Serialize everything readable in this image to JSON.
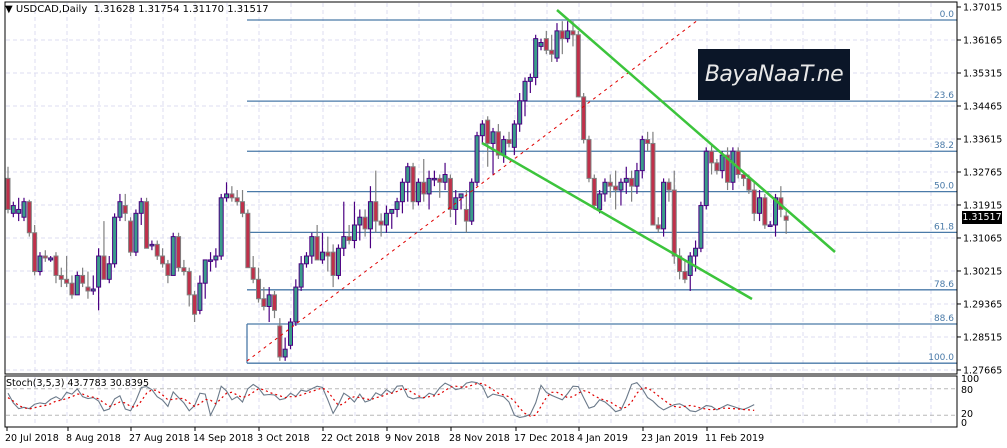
{
  "header": {
    "symbol": "USDCAD,Daily",
    "ohlc": "1.31628 1.31754 1.31170 1.31517",
    "arrow_icon": "triangle-down-icon"
  },
  "logo": {
    "text": "BayaNaaT.ne"
  },
  "current_price": "1.31517",
  "indicator": {
    "label": "Stoch(3,5,3) 43.7783 30.8395",
    "levels": [
      "100",
      "80",
      "20",
      "0"
    ]
  },
  "colors": {
    "bull_body": "#3a9c8a",
    "bull_border": "#4b0082",
    "bear_body": "#c0304a",
    "bear_border": "#808080",
    "fib_line": "#4a7aa8",
    "channel": "#3cc43c",
    "trend_dashed": "#e00000",
    "stoch_main": "#6b7a8a",
    "stoch_signal": "#e00000",
    "grid": "#dcdcf0"
  },
  "chart_data": {
    "type": "candlestick",
    "title": "USDCAD, Daily",
    "xlabel": "",
    "ylabel": "",
    "y_axis_ticks": [
      "1.37015",
      "1.36165",
      "1.35315",
      "1.34465",
      "1.33615",
      "1.32765",
      "1.31915",
      "1.31065",
      "1.30215",
      "1.29365",
      "1.28515",
      "1.27665"
    ],
    "x_axis_ticks": [
      "20 Jul 2018",
      "8 Aug 2018",
      "27 Aug 2018",
      "14 Sep 2018",
      "3 Oct 2018",
      "22 Oct 2018",
      "9 Nov 2018",
      "28 Nov 2018",
      "17 Dec 2018",
      "4 Jan 2019",
      "23 Jan 2019",
      "11 Feb 2019"
    ],
    "ylim": [
      1.2745,
      1.372
    ],
    "fibonacci": [
      {
        "level": "0.0",
        "price": 1.3668
      },
      {
        "level": "23.6",
        "price": 1.3459
      },
      {
        "level": "38.2",
        "price": 1.333
      },
      {
        "level": "50.0",
        "price": 1.3226
      },
      {
        "level": "61.8",
        "price": 1.3121
      },
      {
        "level": "78.6",
        "price": 1.2973
      },
      {
        "level": "88.6",
        "price": 1.2885
      },
      {
        "level": "100.0",
        "price": 1.2784
      }
    ],
    "channel_upper": {
      "from": [
        557,
        10
      ],
      "to": [
        835,
        252
      ]
    },
    "channel_lower": {
      "from": [
        482,
        143
      ],
      "to": [
        752,
        299
      ]
    },
    "trend_dashed": {
      "from": [
        247,
        361
      ],
      "to": [
        698,
        20
      ]
    },
    "candles_start_x": 8,
    "candle_spacing": 5.33,
    "ohlc": [
      [
        1.326,
        1.329,
        1.317,
        1.318
      ],
      [
        1.317,
        1.32,
        1.316,
        1.319
      ],
      [
        1.317,
        1.321,
        1.315,
        1.318
      ],
      [
        1.316,
        1.321,
        1.315,
        1.32
      ],
      [
        1.32,
        1.3205,
        1.311,
        1.312
      ],
      [
        1.312,
        1.314,
        1.301,
        1.302
      ],
      [
        1.302,
        1.307,
        1.301,
        1.306
      ],
      [
        1.306,
        1.3075,
        1.3045,
        1.3055
      ],
      [
        1.305,
        1.306,
        1.3045,
        1.3055
      ],
      [
        1.306,
        1.307,
        1.299,
        1.301
      ],
      [
        1.301,
        1.303,
        1.298,
        1.3
      ],
      [
        1.3,
        1.306,
        1.298,
        1.299
      ],
      [
        1.299,
        1.301,
        1.295,
        1.296
      ],
      [
        1.296,
        1.302,
        1.296,
        1.301
      ],
      [
        1.301,
        1.303,
        1.298,
        1.299
      ],
      [
        1.298,
        1.302,
        1.295,
        1.297
      ],
      [
        1.297,
        1.301,
        1.296,
        1.2975
      ],
      [
        1.298,
        1.308,
        1.292,
        1.306
      ],
      [
        1.306,
        1.315,
        1.302,
        1.3
      ],
      [
        1.3,
        1.306,
        1.299,
        1.304
      ],
      [
        1.304,
        1.317,
        1.303,
        1.316
      ],
      [
        1.316,
        1.322,
        1.315,
        1.32
      ],
      [
        1.319,
        1.322,
        1.315,
        1.317
      ],
      [
        1.315,
        1.316,
        1.306,
        1.307
      ],
      [
        1.307,
        1.318,
        1.306,
        1.317
      ],
      [
        1.317,
        1.321,
        1.314,
        1.32
      ],
      [
        1.32,
        1.321,
        1.312,
        1.308
      ],
      [
        1.309,
        1.31,
        1.3075,
        1.309
      ],
      [
        1.309,
        1.31,
        1.305,
        1.306
      ],
      [
        1.306,
        1.308,
        1.303,
        1.304
      ],
      [
        1.304,
        1.305,
        1.299,
        1.301
      ],
      [
        1.301,
        1.312,
        1.301,
        1.311
      ],
      [
        1.311,
        1.312,
        1.302,
        1.303
      ],
      [
        1.303,
        1.305,
        1.301,
        1.302
      ],
      [
        1.302,
        1.303,
        1.293,
        1.296
      ],
      [
        1.296,
        1.297,
        1.289,
        1.291
      ],
      [
        1.292,
        1.301,
        1.291,
        1.299
      ],
      [
        1.299,
        1.304,
        1.295,
        1.305
      ],
      [
        1.305,
        1.307,
        1.302,
        1.305
      ],
      [
        1.305,
        1.308,
        1.303,
        1.306
      ],
      [
        1.306,
        1.322,
        1.305,
        1.321
      ],
      [
        1.321,
        1.325,
        1.32,
        1.322
      ],
      [
        1.322,
        1.324,
        1.32,
        1.321
      ],
      [
        1.321,
        1.323,
        1.319,
        1.32
      ],
      [
        1.32,
        1.323,
        1.316,
        1.317
      ],
      [
        1.317,
        1.318,
        1.305,
        1.303
      ],
      [
        1.303,
        1.306,
        1.299,
        1.3
      ],
      [
        1.3,
        1.303,
        1.294,
        1.295
      ],
      [
        1.295,
        1.298,
        1.292,
        1.293
      ],
      [
        1.293,
        1.298,
        1.289,
        1.296
      ],
      [
        1.296,
        1.297,
        1.29,
        1.292
      ],
      [
        1.288,
        1.29,
        1.279,
        1.28
      ],
      [
        1.28,
        1.285,
        1.279,
        1.282
      ],
      [
        1.283,
        1.29,
        1.282,
        1.289
      ],
      [
        1.289,
        1.3,
        1.288,
        1.298
      ],
      [
        1.298,
        1.306,
        1.297,
        1.304
      ],
      [
        1.304,
        1.307,
        1.303,
        1.306
      ],
      [
        1.306,
        1.312,
        1.304,
        1.311
      ],
      [
        1.311,
        1.314,
        1.305,
        1.305
      ],
      [
        1.305,
        1.312,
        1.304,
        1.307
      ],
      [
        1.307,
        1.311,
        1.302,
        1.306
      ],
      [
        1.307,
        1.309,
        1.298,
        1.301
      ],
      [
        1.301,
        1.309,
        1.3,
        1.308
      ],
      [
        1.308,
        1.32,
        1.306,
        1.311
      ],
      [
        1.311,
        1.314,
        1.309,
        1.31
      ],
      [
        1.31,
        1.32,
        1.308,
        1.314
      ],
      [
        1.314,
        1.318,
        1.31,
        1.316
      ],
      [
        1.316,
        1.318,
        1.311,
        1.313
      ],
      [
        1.313,
        1.324,
        1.308,
        1.32
      ],
      [
        1.32,
        1.328,
        1.312,
        1.315
      ],
      [
        1.315,
        1.317,
        1.311,
        1.314
      ],
      [
        1.314,
        1.319,
        1.312,
        1.317
      ],
      [
        1.317,
        1.318,
        1.313,
        1.318
      ],
      [
        1.318,
        1.321,
        1.316,
        1.32
      ],
      [
        1.32,
        1.326,
        1.317,
        1.325
      ],
      [
        1.325,
        1.33,
        1.32,
        1.329
      ],
      [
        1.329,
        1.33,
        1.318,
        1.32
      ],
      [
        1.32,
        1.326,
        1.319,
        1.325
      ],
      [
        1.325,
        1.331,
        1.32,
        1.322
      ],
      [
        1.322,
        1.328,
        1.318,
        1.326
      ],
      [
        1.326,
        1.328,
        1.324,
        1.326
      ],
      [
        1.326,
        1.327,
        1.321,
        1.325
      ],
      [
        1.325,
        1.33,
        1.323,
        1.327
      ],
      [
        1.326,
        1.327,
        1.316,
        1.318
      ],
      [
        1.318,
        1.323,
        1.314,
        1.321
      ],
      [
        1.321,
        1.322,
        1.318,
        1.322
      ],
      [
        1.318,
        1.323,
        1.312,
        1.315
      ],
      [
        1.315,
        1.326,
        1.314,
        1.325
      ],
      [
        1.325,
        1.338,
        1.324,
        1.337
      ],
      [
        1.337,
        1.341,
        1.335,
        1.34
      ],
      [
        1.341,
        1.342,
        1.329,
        1.335
      ],
      [
        1.335,
        1.339,
        1.327,
        1.338
      ],
      [
        1.338,
        1.34,
        1.331,
        1.332
      ],
      [
        1.332,
        1.337,
        1.33,
        1.336
      ],
      [
        1.336,
        1.338,
        1.334,
        1.335
      ],
      [
        1.334,
        1.341,
        1.332,
        1.34
      ],
      [
        1.34,
        1.348,
        1.338,
        1.346
      ],
      [
        1.346,
        1.352,
        1.342,
        1.351
      ],
      [
        1.351,
        1.353,
        1.348,
        1.352
      ],
      [
        1.352,
        1.363,
        1.35,
        1.362
      ],
      [
        1.36,
        1.362,
        1.359,
        1.361
      ],
      [
        1.362,
        1.364,
        1.358,
        1.359
      ],
      [
        1.359,
        1.363,
        1.356,
        1.358
      ],
      [
        1.357,
        1.366,
        1.356,
        1.364
      ],
      [
        1.364,
        1.3665,
        1.358,
        1.362
      ],
      [
        1.362,
        1.3665,
        1.361,
        1.364
      ],
      [
        1.364,
        1.3665,
        1.36,
        1.363
      ],
      [
        1.363,
        1.364,
        1.352,
        1.347
      ],
      [
        1.347,
        1.348,
        1.335,
        1.336
      ],
      [
        1.336,
        1.337,
        1.325,
        1.326
      ],
      [
        1.326,
        1.327,
        1.318,
        1.319
      ],
      [
        1.318,
        1.323,
        1.317,
        1.322
      ],
      [
        1.322,
        1.326,
        1.32,
        1.325
      ],
      [
        1.325,
        1.327,
        1.321,
        1.324
      ],
      [
        1.324,
        1.328,
        1.318,
        1.323
      ],
      [
        1.323,
        1.326,
        1.319,
        1.325
      ],
      [
        1.325,
        1.329,
        1.322,
        1.326
      ],
      [
        1.326,
        1.328,
        1.32,
        1.324
      ],
      [
        1.324,
        1.33,
        1.322,
        1.328
      ],
      [
        1.328,
        1.337,
        1.326,
        1.336
      ],
      [
        1.336,
        1.338,
        1.333,
        1.335
      ],
      [
        1.335,
        1.338,
        1.32,
        1.314
      ],
      [
        1.314,
        1.316,
        1.312,
        1.313
      ],
      [
        1.313,
        1.326,
        1.311,
        1.325
      ],
      [
        1.325,
        1.326,
        1.32,
        1.323
      ],
      [
        1.323,
        1.328,
        1.304,
        1.306
      ],
      [
        1.306,
        1.308,
        1.3,
        1.302
      ],
      [
        1.302,
        1.305,
        1.299,
        1.3
      ],
      [
        1.301,
        1.307,
        1.297,
        1.306
      ],
      [
        1.306,
        1.31,
        1.302,
        1.308
      ],
      [
        1.308,
        1.32,
        1.307,
        1.319
      ],
      [
        1.319,
        1.334,
        1.318,
        1.333
      ],
      [
        1.333,
        1.335,
        1.327,
        1.33
      ],
      [
        1.33,
        1.331,
        1.327,
        1.328
      ],
      [
        1.328,
        1.333,
        1.326,
        1.332
      ],
      [
        1.332,
        1.334,
        1.323,
        1.325
      ],
      [
        1.325,
        1.334,
        1.323,
        1.333
      ],
      [
        1.333,
        1.334,
        1.326,
        1.327
      ],
      [
        1.327,
        1.328,
        1.324,
        1.326
      ],
      [
        1.326,
        1.327,
        1.322,
        1.323
      ],
      [
        1.323,
        1.325,
        1.315,
        1.317
      ],
      [
        1.317,
        1.323,
        1.315,
        1.321
      ],
      [
        1.321,
        1.322,
        1.313,
        1.314
      ],
      [
        1.314,
        1.315,
        1.314,
        1.314
      ],
      [
        1.314,
        1.322,
        1.311,
        1.321
      ],
      [
        1.321,
        1.324,
        1.316,
        1.318
      ],
      [
        1.3163,
        1.3175,
        1.3117,
        1.3152
      ]
    ],
    "stoch_main": [
      70,
      48,
      35,
      38,
      35,
      45,
      48,
      46,
      56,
      62,
      55,
      72,
      68,
      80,
      62,
      58,
      60,
      52,
      30,
      34,
      57,
      64,
      34,
      30,
      53,
      83,
      85,
      78,
      62,
      54,
      40,
      73,
      60,
      48,
      30,
      42,
      70,
      68,
      20,
      45,
      86,
      75,
      55,
      62,
      50,
      80,
      90,
      82,
      66,
      67,
      66,
      55,
      58,
      70,
      63,
      77,
      74,
      80,
      86,
      83,
      55,
      24,
      45,
      70,
      62,
      50,
      68,
      50,
      54,
      71,
      65,
      78,
      70,
      86,
      87,
      62,
      57,
      60,
      59,
      70,
      66,
      82,
      93,
      87,
      78,
      81,
      93,
      96,
      94,
      86,
      60,
      68,
      65,
      62,
      50,
      20,
      15,
      17,
      22,
      48,
      88,
      72,
      65,
      60,
      55,
      69,
      86,
      85,
      60,
      36,
      40,
      55,
      50,
      40,
      28,
      32,
      58,
      90,
      94,
      80,
      60,
      52,
      40,
      32,
      38,
      44,
      46,
      40,
      30,
      28,
      34,
      42,
      40,
      32,
      38,
      44,
      40,
      36,
      33,
      38,
      44
    ],
    "stoch_signal": [
      60,
      52,
      42,
      37,
      34,
      37,
      40,
      42,
      46,
      52,
      54,
      58,
      62,
      68,
      68,
      63,
      61,
      57,
      48,
      40,
      44,
      50,
      48,
      40,
      38,
      52,
      70,
      78,
      76,
      66,
      55,
      56,
      58,
      58,
      48,
      40,
      46,
      56,
      54,
      46,
      58,
      70,
      72,
      66,
      60,
      64,
      72,
      80,
      78,
      72,
      68,
      64,
      60,
      62,
      62,
      66,
      70,
      74,
      78,
      82,
      74,
      58,
      42,
      46,
      58,
      62,
      60,
      58,
      55,
      60,
      62,
      68,
      70,
      74,
      80,
      78,
      70,
      64,
      60,
      62,
      64,
      68,
      76,
      84,
      86,
      84,
      84,
      88,
      92,
      92,
      86,
      78,
      70,
      66,
      62,
      52,
      36,
      24,
      18,
      20,
      40,
      60,
      72,
      72,
      66,
      60,
      62,
      70,
      76,
      72,
      64,
      58,
      54,
      50,
      42,
      36,
      38,
      50,
      70,
      82,
      82,
      74,
      64,
      55,
      46,
      40,
      38,
      40,
      42,
      40,
      36,
      34,
      32,
      34,
      36,
      36,
      35,
      34,
      33,
      32,
      31
    ]
  }
}
